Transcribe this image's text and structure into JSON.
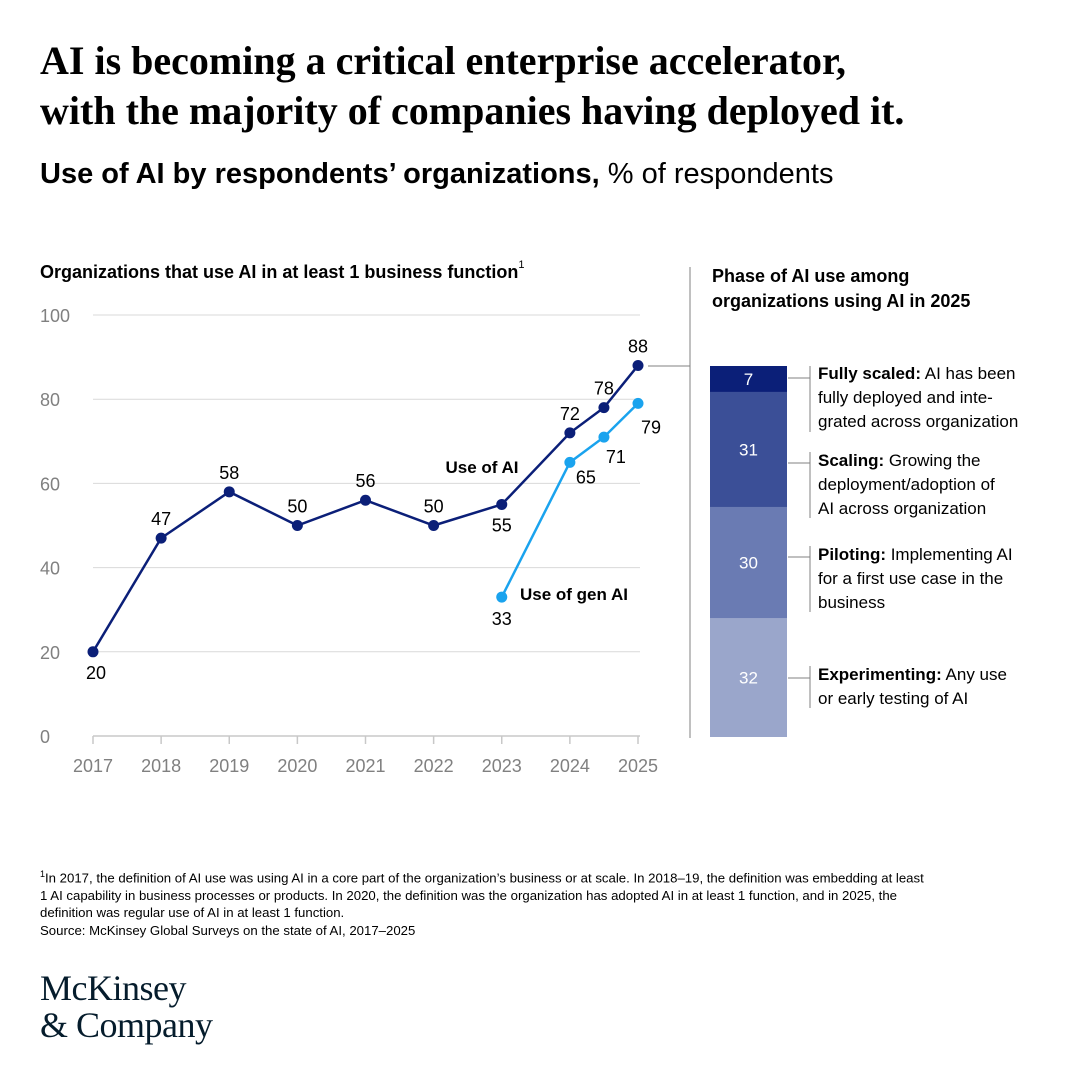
{
  "header": {
    "title_line1": "AI is becoming a critical enterprise accelerator,",
    "title_line2": "with the majority of companies having deployed it.",
    "subtitle_bold": "Use of AI by respondents’ organizations,",
    "subtitle_unit": " % of respondents"
  },
  "left_panel": {
    "heading": "Organizations that use AI in at least 1 business function",
    "footnote_marker": "1"
  },
  "right_panel": {
    "heading_line1": "Phase of AI use among",
    "heading_line2": "organizations using AI in 2025"
  },
  "colors": {
    "use_of_ai": "#0b1f78",
    "use_of_gen_ai": "#1aa3ee",
    "fully_scaled": "#0b1f78",
    "scaling": "#3b4f97",
    "piloting": "#6a7bb3",
    "experimenting": "#9aa6cb",
    "grid": "#d9d9d9",
    "axis_text": "#808080"
  },
  "chart_data": [
    {
      "type": "line",
      "title": "Organizations that use AI in at least 1 business function",
      "ylim": [
        0,
        100
      ],
      "yticks": [
        0,
        20,
        40,
        60,
        80,
        100
      ],
      "x_ticks": [
        "2017",
        "2018",
        "2019",
        "2020",
        "2021",
        "2022",
        "2023",
        "2024",
        "2025"
      ],
      "grid": true,
      "series": [
        {
          "name": "Use of AI",
          "x": [
            2017,
            2018,
            2019,
            2020,
            2021,
            2022,
            2023,
            2024,
            2024.5,
            2025
          ],
          "values": [
            20,
            47,
            58,
            50,
            56,
            50,
            55,
            72,
            78,
            88
          ]
        },
        {
          "name": "Use of gen AI",
          "x": [
            2023,
            2024,
            2024.5,
            2025
          ],
          "values": [
            33,
            65,
            71,
            79
          ]
        }
      ]
    },
    {
      "type": "bar",
      "title": "Phase of AI use among organizations using AI in 2025",
      "stacked": true,
      "categories": [
        "2025"
      ],
      "series": [
        {
          "name": "Experimenting",
          "values": [
            32
          ]
        },
        {
          "name": "Piloting",
          "values": [
            30
          ]
        },
        {
          "name": "Scaling",
          "values": [
            31
          ]
        },
        {
          "name": "Fully scaled",
          "values": [
            7
          ]
        }
      ]
    }
  ],
  "phases": [
    {
      "name": "Fully scaled:",
      "line1": " AI has been",
      "line2": "fully deployed and inte-",
      "line3": "grated across organization"
    },
    {
      "name": "Scaling:",
      "line1": " Growing the",
      "line2": "deployment/adoption of",
      "line3": "AI across organization"
    },
    {
      "name": "Piloting:",
      "line1": " Implementing AI",
      "line2": "for a first use case in the",
      "line3": "business"
    },
    {
      "name": "Experimenting:",
      "line1": " Any use",
      "line2": "or early testing of AI",
      "line3": ""
    }
  ],
  "footnote": {
    "marker": "1",
    "line1": "In 2017, the definition of AI use was using AI in a core part of the organization’s business or at scale. In 2018–19, the definition was embedding at least",
    "line2": "1 AI capability in business processes or products. In 2020, the definition was the organization has adopted AI in at least 1 function, and in 2025, the",
    "line3": "definition was regular use of AI in at least 1 function.",
    "source": "Source: McKinsey Global Surveys on the state of AI, 2017–2025"
  },
  "logo": {
    "line1": "McKinsey",
    "line2": "& Company"
  }
}
